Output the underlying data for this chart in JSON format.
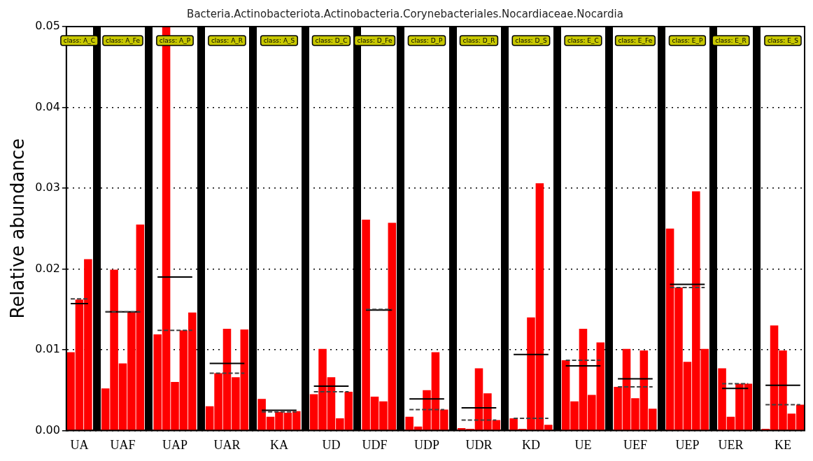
{
  "chart_data": {
    "type": "bar",
    "title": "Bacteria.Actinobacteriota.Actinobacteria.Corynebacteriales.Nocardiaceae.Nocardia",
    "ylabel": "Relative abundance",
    "categories": [
      null,
      "UA",
      null,
      null,
      null,
      null,
      "UAF",
      null,
      null,
      null,
      null,
      null,
      "UAP",
      null,
      null,
      null,
      null,
      null,
      "UAR",
      null,
      null,
      null,
      null,
      null,
      "KA",
      null,
      null,
      null,
      null,
      null,
      "UD",
      null,
      null,
      null,
      null,
      "UDF",
      null,
      null,
      null,
      null,
      null,
      "UDP",
      null,
      null,
      null,
      null,
      null,
      "UDR",
      null,
      null,
      null,
      null,
      null,
      "KD",
      null,
      null,
      null,
      null,
      null,
      "UE",
      null,
      null,
      null,
      null,
      null,
      "UEF",
      null,
      null,
      null,
      null,
      null,
      "UEP",
      null,
      null,
      null,
      null,
      "UER",
      null,
      null,
      null,
      null,
      null,
      "KE",
      null,
      null
    ],
    "ylim": [
      0,
      0.05
    ],
    "yticks": [
      {
        "value": 0,
        "label": "0.00"
      },
      {
        "value": 0.01,
        "label": "0.01"
      },
      {
        "value": 0.02,
        "label": "0.02"
      },
      {
        "value": 0.03,
        "label": "0.03"
      },
      {
        "value": 0.04,
        "label": "0.04"
      },
      {
        "value": 0.05,
        "label": "0.05"
      }
    ],
    "grid": "y",
    "marker": "none",
    "series": [
      {
        "color": "#ff0000",
        "values": [
          0.0097,
          0.0162,
          0.0212,
          null,
          0.0052,
          0.0199,
          0.0083,
          0.0147,
          0.0255,
          null,
          0.0119,
          0.05,
          0.006,
          0.0124,
          0.0146,
          null,
          0.003,
          0.0071,
          0.0126,
          0.0066,
          0.0125,
          null,
          0.0039,
          0.0017,
          0.0023,
          0.0022,
          0.0024,
          null,
          0.0045,
          0.0101,
          0.0066,
          0.0015,
          0.0048,
          null,
          0.0261,
          0.0042,
          0.0036,
          0.0257,
          null,
          0.0017,
          0.0005,
          0.005,
          0.0097,
          0.0026,
          null,
          0.0003,
          0.0002,
          0.0077,
          0.0046,
          0.0013,
          null,
          0.0015,
          0.0002,
          0.014,
          0.0306,
          0.0007,
          null,
          0.0087,
          0.0036,
          0.0126,
          0.0044,
          0.0109,
          null,
          0.0054,
          0.0101,
          0.004,
          0.0099,
          0.0027,
          null,
          0.025,
          0.0177,
          0.0085,
          0.0296,
          0.0101,
          null,
          0.0077,
          0.0017,
          0.0058,
          0.0058,
          null,
          0.0002,
          0.013,
          0.0099,
          0.0021,
          0.0032
        ]
      },
      {
        "type": "line",
        "color": "#000000",
        "line_style": "solid",
        "values": [
          0.0157,
          0.0157,
          0.0157,
          null,
          0.0147,
          0.0147,
          0.0147,
          0.0147,
          0.0147,
          null,
          0.019,
          0.019,
          0.019,
          0.019,
          0.019,
          null,
          0.0083,
          0.0083,
          0.0083,
          0.0083,
          0.0083,
          null,
          0.0025,
          0.0025,
          0.0025,
          0.0025,
          0.0025,
          null,
          0.0055,
          0.0055,
          0.0055,
          0.0055,
          0.0055,
          null,
          0.0149,
          0.0149,
          0.0149,
          0.0149,
          null,
          0.0039,
          0.0039,
          0.0039,
          0.0039,
          0.0039,
          null,
          0.0028,
          0.0028,
          0.0028,
          0.0028,
          0.0028,
          null,
          0.0094,
          0.0094,
          0.0094,
          0.0094,
          0.0094,
          null,
          0.008,
          0.008,
          0.008,
          0.008,
          0.008,
          null,
          0.0064,
          0.0064,
          0.0064,
          0.0064,
          0.0064,
          null,
          0.0181,
          0.0181,
          0.0181,
          0.0181,
          0.0181,
          null,
          0.0052,
          0.0052,
          0.0052,
          0.0052,
          null,
          0.0056,
          0.0056,
          0.0056,
          0.0056,
          0.0056
        ]
      },
      {
        "type": "line",
        "color": "#404040",
        "line_style": "dashed",
        "values": [
          0.0163,
          0.0163,
          0.0163,
          null,
          0.0147,
          0.0147,
          0.0147,
          0.0147,
          0.0147,
          null,
          0.0124,
          0.0124,
          0.0124,
          0.0124,
          0.0124,
          null,
          0.0071,
          0.0071,
          0.0071,
          0.0071,
          0.0071,
          null,
          0.0023,
          0.0023,
          0.0023,
          0.0023,
          0.0023,
          null,
          0.0048,
          0.0048,
          0.0048,
          0.0048,
          0.0048,
          null,
          0.015,
          0.015,
          0.015,
          0.015,
          null,
          0.0026,
          0.0026,
          0.0026,
          0.0026,
          0.0026,
          null,
          0.0013,
          0.0013,
          0.0013,
          0.0013,
          0.0013,
          null,
          0.0015,
          0.0015,
          0.0015,
          0.0015,
          0.0015,
          null,
          0.0087,
          0.0087,
          0.0087,
          0.0087,
          0.0087,
          null,
          0.0054,
          0.0054,
          0.0054,
          0.0054,
          0.0054,
          null,
          0.0177,
          0.0177,
          0.0177,
          0.0177,
          0.0177,
          null,
          0.0058,
          0.0058,
          0.0058,
          0.0058,
          null,
          0.0032,
          0.0032,
          0.0032,
          0.0032,
          0.0032
        ]
      }
    ],
    "annotations": [
      "class: A_C",
      "class: A_Fe",
      "class: A_P",
      "class: A_R",
      "class: A_S",
      "class: D_C",
      "class: D_Fe",
      "class: D_P",
      "class: D_R",
      "class: D_S",
      "class: E_C",
      "class: E_Fe",
      "class: E_P",
      "class: E_R",
      "class: E_S"
    ]
  }
}
